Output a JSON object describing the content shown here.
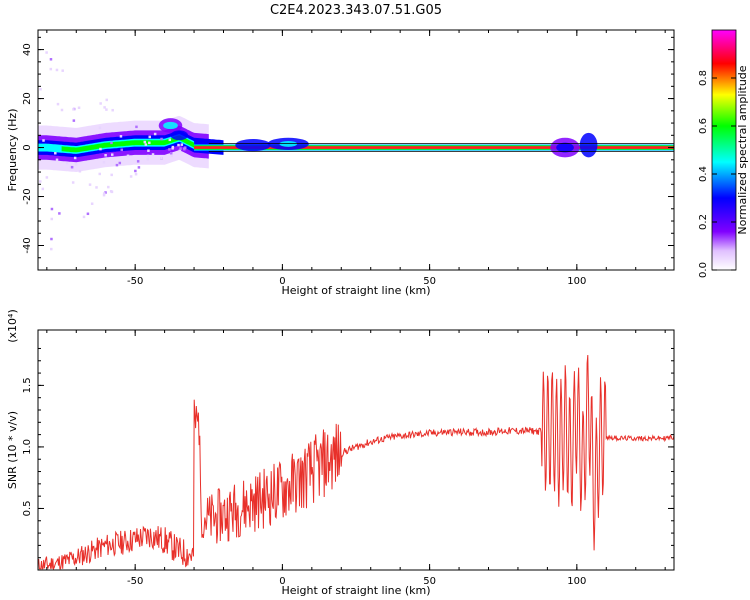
{
  "title": "C2E4.2023.343.07.51.G05",
  "chart_data": [
    {
      "type": "heatmap",
      "xlabel": "Height of straight line (km)",
      "ylabel": "Frequency (Hz)",
      "xlim": [
        -83,
        133
      ],
      "ylim": [
        -50,
        48
      ],
      "xticks": [
        -50,
        0,
        50,
        100
      ],
      "yticks": [
        -40,
        -20,
        0,
        20,
        40
      ],
      "colorbar": {
        "label": "Normalized spectral amplitude",
        "range": [
          0,
          1
        ],
        "ticks": [
          0.0,
          0.2,
          0.4,
          0.6,
          0.8
        ],
        "colors": [
          "#ffffff",
          "#8000ff",
          "#0000ff",
          "#00ffff",
          "#00ff00",
          "#ffff00",
          "#ff0000",
          "#ff00ff"
        ]
      },
      "ridge": {
        "description_values": "dominant frequency ridge",
        "x": [
          -80,
          -70,
          -60,
          -50,
          -40,
          -35,
          -30,
          -20,
          -10,
          0,
          10,
          20,
          50,
          90,
          100,
          107,
          133
        ],
        "y": [
          0,
          -1,
          1,
          2,
          2,
          4,
          1,
          0,
          0,
          1,
          0,
          0,
          0,
          0,
          0,
          1,
          0
        ]
      },
      "grid": false
    },
    {
      "type": "line",
      "xlabel": "Height of straight line (km)",
      "ylabel": "SNR (10 * v/v)",
      "yscale_label": "(x10⁴)",
      "xlim": [
        -83,
        133
      ],
      "ylim": [
        0,
        1.95
      ],
      "xticks": [
        -50,
        0,
        50,
        100
      ],
      "yticks": [
        0.5,
        1.0,
        1.5
      ],
      "ytick_labels": [
        "0.5",
        "1.0",
        "1.5"
      ],
      "series": [
        {
          "color": "#e8302a",
          "x": [
            -83,
            -75,
            -70,
            -65,
            -60,
            -55,
            -50,
            -45,
            -40,
            -35,
            -30,
            -28,
            -25,
            -20,
            -15,
            -10,
            -5,
            0,
            5,
            10,
            15,
            20,
            25,
            30,
            35,
            40,
            45,
            50,
            55,
            60,
            65,
            70,
            75,
            80,
            85,
            90,
            92,
            94,
            96,
            98,
            100,
            102,
            104,
            106,
            108,
            110,
            115,
            120,
            125,
            130,
            133
          ],
          "y": [
            0.03,
            0.06,
            0.1,
            0.15,
            0.2,
            0.22,
            0.25,
            0.28,
            0.24,
            0.15,
            0.12,
            0.5,
            0.4,
            0.45,
            0.5,
            0.55,
            0.6,
            0.65,
            0.72,
            0.8,
            0.88,
            0.95,
            1.0,
            1.04,
            1.07,
            1.09,
            1.1,
            1.11,
            1.12,
            1.12,
            1.12,
            1.12,
            1.13,
            1.13,
            1.13,
            1.12,
            1.15,
            1.0,
            1.2,
            0.9,
            1.3,
            0.8,
            1.4,
            0.6,
            1.08,
            1.08,
            1.07,
            1.07,
            1.07,
            1.07,
            1.08
          ]
        }
      ],
      "grid": false
    }
  ]
}
